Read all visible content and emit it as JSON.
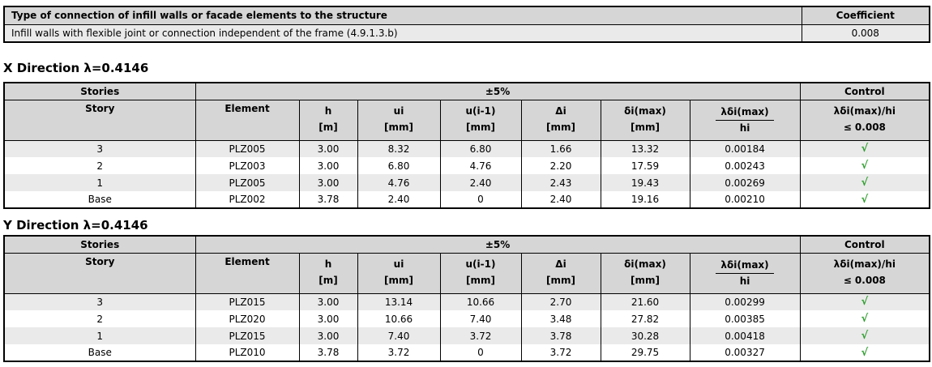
{
  "connection_table": {
    "header": "Type of connection of infill walls or facade elements to the structure",
    "coefficient_header": "Coefficient",
    "row": {
      "description": "Infill walls with flexible joint or connection independent of the frame (4.9.1.3.b)",
      "coefficient": "0.008"
    }
  },
  "columns": {
    "stories": "Stories",
    "pm5": "±5%",
    "control": "Control",
    "story": "Story",
    "element": "Element",
    "h": "h",
    "h_unit": "[m]",
    "ui": "ui",
    "ui_unit": "[mm]",
    "uim1": "u(i-1)",
    "uim1_unit": "[mm]",
    "delta_i": "Δi",
    "delta_i_unit": "[mm]",
    "delta_i_max": "δi(max)",
    "delta_i_max_unit": "[mm]",
    "ratio_num": "λδi(max)",
    "ratio_den": "hi",
    "control_expr": "λδi(max)/hi",
    "control_limit": "≤ 0.008"
  },
  "check_symbol": "√",
  "colors": {
    "check_green": "#2f9e2f",
    "header_bg": "#d6d6d6",
    "stripe_bg": "#eaeaea"
  },
  "sections": [
    {
      "heading": "X Direction λ=0.4146",
      "rows": [
        [
          "3",
          "PLZ005",
          "3.00",
          "8.32",
          "6.80",
          "1.66",
          "13.32",
          "0.00184"
        ],
        [
          "2",
          "PLZ003",
          "3.00",
          "6.80",
          "4.76",
          "2.20",
          "17.59",
          "0.00243"
        ],
        [
          "1",
          "PLZ005",
          "3.00",
          "4.76",
          "2.40",
          "2.43",
          "19.43",
          "0.00269"
        ],
        [
          "Base",
          "PLZ002",
          "3.78",
          "2.40",
          "0",
          "2.40",
          "19.16",
          "0.00210"
        ]
      ]
    },
    {
      "heading": "Y Direction λ=0.4146",
      "rows": [
        [
          "3",
          "PLZ015",
          "3.00",
          "13.14",
          "10.66",
          "2.70",
          "21.60",
          "0.00299"
        ],
        [
          "2",
          "PLZ020",
          "3.00",
          "10.66",
          "7.40",
          "3.48",
          "27.82",
          "0.00385"
        ],
        [
          "1",
          "PLZ015",
          "3.00",
          "7.40",
          "3.72",
          "3.78",
          "30.28",
          "0.00418"
        ],
        [
          "Base",
          "PLZ010",
          "3.78",
          "3.72",
          "0",
          "3.72",
          "29.75",
          "0.00327"
        ]
      ]
    }
  ]
}
